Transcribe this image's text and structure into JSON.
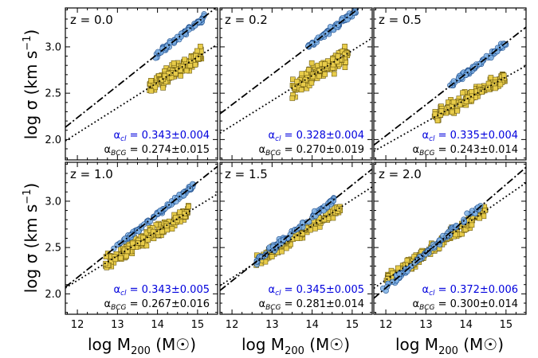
{
  "figure": {
    "ylabel_main": "log σ (km s",
    "ylabel_sup": "−1",
    "ylabel_close": ")",
    "xlabel_main": "log M",
    "xlabel_sub": "200",
    "xlabel_unit": " (M☉)",
    "alpha_symbol": "α",
    "cl_sub": "cl",
    "bcg_sub": "BCG",
    "colors": {
      "cluster_fill": "#7fb2e5",
      "cluster_edge": "#1f4e8c",
      "bcg_fill": "#e8cc4a",
      "bcg_edge": "#6b5a10",
      "alpha_cl_text": "#0000dd",
      "alpha_bcg_text": "#000000"
    }
  },
  "chart_data": [
    {
      "type": "scatter",
      "panel": "z = 0.0",
      "xlim": [
        11.7,
        15.5
      ],
      "ylim": [
        1.78,
        3.42
      ],
      "xticks": [
        12,
        13,
        14,
        15
      ],
      "yticks": [
        2.0,
        2.5,
        3.0
      ],
      "alpha_cl": "= 0.343±0.004",
      "alpha_bcg": "= 0.274±0.015",
      "cl_fit": {
        "slope": 0.343,
        "intercept": -1.88
      },
      "bcg_fit": {
        "slope": 0.274,
        "intercept": -1.22
      },
      "cl_points": {
        "xmin": 13.95,
        "xmax": 15.2,
        "ymid": 3.01,
        "spread": 0.03,
        "n": 70
      },
      "bcg_points": {
        "xmin": 13.8,
        "xmax": 15.1,
        "ymid": 2.68,
        "spread": 0.08,
        "n": 150
      }
    },
    {
      "type": "scatter",
      "panel": "z = 0.2",
      "xlim": [
        11.7,
        15.5
      ],
      "ylim": [
        1.78,
        3.42
      ],
      "xticks": [
        12,
        13,
        14,
        15
      ],
      "yticks": [
        2.0,
        2.5,
        3.0
      ],
      "alpha_cl": "= 0.328±0.004",
      "alpha_bcg": "= 0.270±0.019",
      "cl_fit": {
        "slope": 0.328,
        "intercept": -1.56
      },
      "bcg_fit": {
        "slope": 0.27,
        "intercept": -1.09
      },
      "cl_points": {
        "xmin": 13.9,
        "xmax": 15.1,
        "ymid": 3.0,
        "spread": 0.03,
        "n": 70
      },
      "bcg_points": {
        "xmin": 13.5,
        "xmax": 14.9,
        "ymid": 2.62,
        "spread": 0.1,
        "n": 150
      }
    },
    {
      "type": "scatter",
      "panel": "z = 0.5",
      "xlim": [
        11.7,
        15.5
      ],
      "ylim": [
        1.78,
        3.42
      ],
      "xticks": [
        12,
        13,
        14,
        15
      ],
      "yticks": [
        2.0,
        2.5,
        3.0
      ],
      "alpha_cl": "= 0.335±0.004",
      "alpha_bcg": "= 0.243±0.014",
      "cl_fit": {
        "slope": 0.335,
        "intercept": -1.98
      },
      "bcg_fit": {
        "slope": 0.243,
        "intercept": -0.97
      },
      "cl_points": {
        "xmin": 13.6,
        "xmax": 15.0,
        "ymid": 2.82,
        "spread": 0.03,
        "n": 80
      },
      "bcg_points": {
        "xmin": 13.2,
        "xmax": 15.0,
        "ymid": 2.56,
        "spread": 0.07,
        "n": 170
      }
    },
    {
      "type": "scatter",
      "panel": "z = 1.0",
      "xlim": [
        11.7,
        15.5
      ],
      "ylim": [
        1.78,
        3.42
      ],
      "xticks": [
        12,
        13,
        14,
        15
      ],
      "yticks": [
        2.0,
        2.5,
        3.0
      ],
      "alpha_cl": "= 0.343±0.005",
      "alpha_bcg": "= 0.267±0.016",
      "cl_fit": {
        "slope": 0.343,
        "intercept": -1.94
      },
      "bcg_fit": {
        "slope": 0.267,
        "intercept": -1.06
      },
      "cl_points": {
        "xmin": 12.9,
        "xmax": 14.9,
        "ymid": 2.67,
        "spread": 0.03,
        "n": 90
      },
      "bcg_points": {
        "xmin": 12.7,
        "xmax": 14.8,
        "ymid": 2.5,
        "spread": 0.07,
        "n": 180
      }
    },
    {
      "type": "scatter",
      "panel": "z = 1.5",
      "xlim": [
        11.7,
        15.5
      ],
      "ylim": [
        1.78,
        3.42
      ],
      "xticks": [
        12,
        13,
        14,
        15
      ],
      "yticks": [
        2.0,
        2.5,
        3.0
      ],
      "alpha_cl": "= 0.345±0.005",
      "alpha_bcg": "= 0.281±0.014",
      "cl_fit": {
        "slope": 0.345,
        "intercept": -2.0
      },
      "bcg_fit": {
        "slope": 0.281,
        "intercept": -1.2
      },
      "cl_points": {
        "xmin": 12.6,
        "xmax": 14.6,
        "ymid": 2.57,
        "spread": 0.03,
        "n": 90
      },
      "bcg_points": {
        "xmin": 12.6,
        "xmax": 14.7,
        "ymid": 2.47,
        "spread": 0.06,
        "n": 180
      }
    },
    {
      "type": "scatter",
      "panel": "z = 2.0",
      "xlim": [
        11.7,
        15.5
      ],
      "ylim": [
        1.78,
        3.42
      ],
      "xticks": [
        12,
        13,
        14,
        15
      ],
      "yticks": [
        2.0,
        2.5,
        3.0
      ],
      "alpha_cl": "= 0.372±0.006",
      "alpha_bcg": "= 0.300±0.014",
      "cl_fit": {
        "slope": 0.372,
        "intercept": -2.4
      },
      "bcg_fit": {
        "slope": 0.3,
        "intercept": -1.45
      },
      "cl_points": {
        "xmin": 11.9,
        "xmax": 14.4,
        "ymid": 2.52,
        "spread": 0.04,
        "n": 90
      },
      "bcg_points": {
        "xmin": 12.0,
        "xmax": 14.5,
        "ymid": 2.5,
        "spread": 0.06,
        "n": 200
      }
    }
  ]
}
